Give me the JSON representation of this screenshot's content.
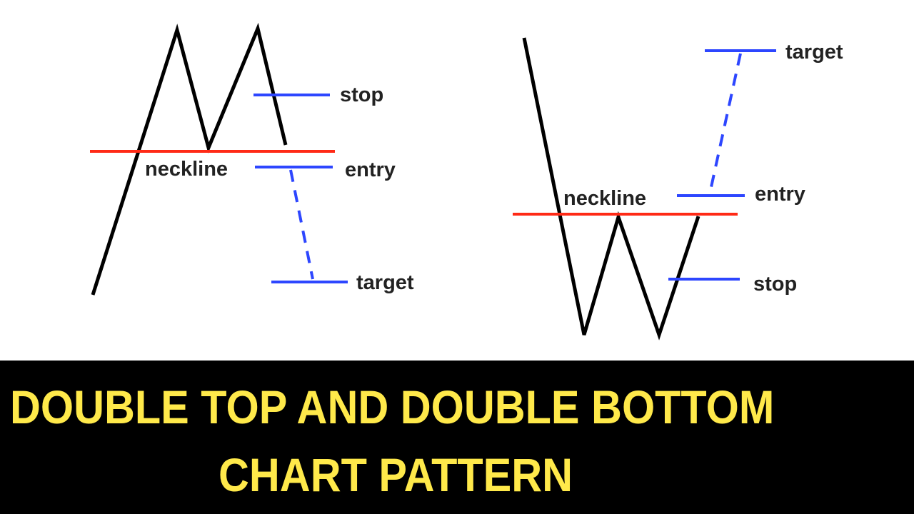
{
  "colors": {
    "price_line": "#000000",
    "neckline": "#ff2a16",
    "levels": "#2d46ff",
    "banner_bg": "#000000",
    "banner_text": "#ffe94a"
  },
  "double_top": {
    "neckline_label": "neckline",
    "stop_label": "stop",
    "entry_label": "entry",
    "target_label": "target"
  },
  "double_bottom": {
    "neckline_label": "neckline",
    "target_label": "target",
    "entry_label": "entry",
    "stop_label": "stop"
  },
  "banner": {
    "line1": "DOUBLE TOP AND DOUBLE BOTTOM",
    "line2": "CHART PATTERN"
  }
}
